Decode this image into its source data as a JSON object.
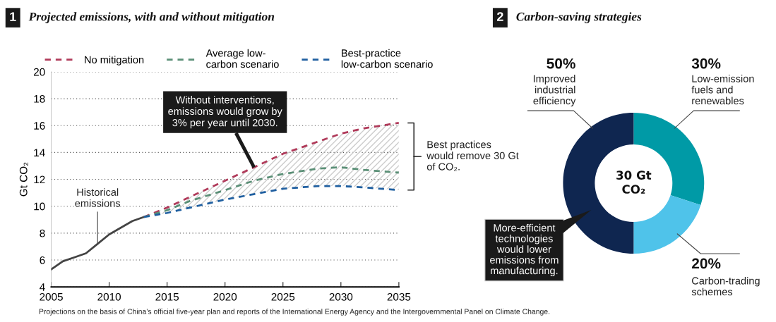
{
  "chart_data": [
    {
      "type": "line",
      "title": "Projected emissions, with and without mitigation",
      "ylabel": "Gt CO₂",
      "xlim": [
        2005,
        2035
      ],
      "xticks": [
        2005,
        2010,
        2015,
        2020,
        2025,
        2030,
        2035
      ],
      "ylim": [
        4,
        20
      ],
      "yticks": [
        4,
        6,
        8,
        10,
        12,
        14,
        16,
        18,
        20
      ],
      "grid": "y",
      "legend": "top",
      "marker": "none",
      "series": [
        {
          "name": "Historical emissions",
          "color": "#444444",
          "line_style": "solid",
          "x": [
            2005,
            2006,
            2007,
            2008,
            2009,
            2010,
            2011,
            2012,
            2013
          ],
          "values": [
            5.3,
            5.9,
            6.2,
            6.5,
            7.2,
            7.9,
            8.4,
            8.9,
            9.2
          ]
        },
        {
          "name": "No mitigation",
          "color": "#b03a5a",
          "line_style": "dashed",
          "x": [
            2013,
            2015,
            2017,
            2020,
            2022.5,
            2025,
            2028,
            2030,
            2032,
            2035
          ],
          "values": [
            9.2,
            9.9,
            10.7,
            11.9,
            12.9,
            13.9,
            14.8,
            15.4,
            15.8,
            16.2
          ]
        },
        {
          "name": "Average low-\ncarbon scenario",
          "color": "#5a8f76",
          "line_style": "dashed",
          "x": [
            2013,
            2015,
            2017,
            2020,
            2022.5,
            2025,
            2028,
            2030,
            2032,
            2035
          ],
          "values": [
            9.2,
            9.7,
            10.4,
            11.2,
            11.9,
            12.4,
            12.8,
            12.9,
            12.7,
            12.5
          ],
          "lower": [
            9.2,
            9.5,
            9.9,
            10.5,
            10.9,
            11.3,
            11.5,
            11.5,
            11.4,
            11.2
          ],
          "upper": [
            9.2,
            9.9,
            10.7,
            11.9,
            12.9,
            13.9,
            14.8,
            15.4,
            15.8,
            16.2
          ]
        },
        {
          "name": "Best-practice\nlow-carbon scenario",
          "color": "#1f5fa0",
          "line_style": "dashed",
          "x": [
            2013,
            2015,
            2017,
            2020,
            2022.5,
            2025,
            2028,
            2030,
            2032,
            2035
          ],
          "values": [
            9.2,
            9.5,
            9.9,
            10.5,
            10.9,
            11.3,
            11.5,
            11.5,
            11.4,
            11.2
          ]
        }
      ],
      "annotations": [
        "1",
        {
          "text": "Without interventions,\nemissions would grow by\n3% per year until 2030.",
          "x": 2022.5,
          "y": 12.9
        },
        "Best practices\nwould remove 30 Gt\nof CO₂.",
        "Projections on the basis of China’s official five-year plan and reports of the International Energy Agency and the Intergovernmental Panel on Climate Change."
      ]
    },
    {
      "type": "donut",
      "title": "Carbon-saving strategies",
      "categories": [
        "Low-emission\nfuels and\nrenewables",
        "Carbon-trading\nschemes",
        "Improved\nindustrial\nefficiency"
      ],
      "values": [
        30,
        20,
        50
      ],
      "value_labels": [
        "30%",
        "20%",
        "50%"
      ],
      "colors": [
        "#009aa6",
        "#4fc3ea",
        "#0f2650"
      ],
      "annotations": [
        "2",
        "30 Gt\nCO₂",
        "More-efficient\ntechnologies\nwould lower\nemissions from\nmanufacturing."
      ]
    }
  ]
}
